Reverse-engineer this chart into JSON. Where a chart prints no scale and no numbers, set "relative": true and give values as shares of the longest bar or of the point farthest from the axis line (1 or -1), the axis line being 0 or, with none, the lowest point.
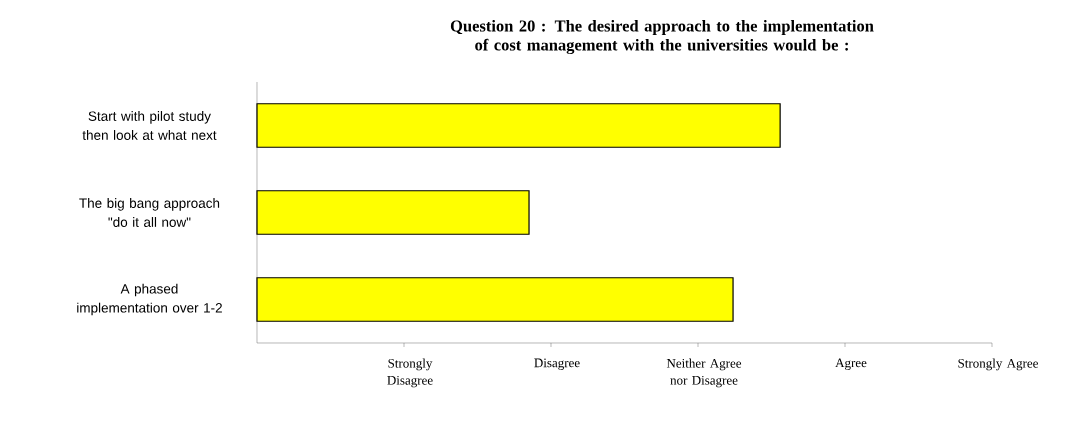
{
  "chart_data": {
    "type": "bar",
    "orientation": "horizontal",
    "relative": true,
    "title": "Question 20 : The desired approach to the implementation of cost management with the universities would be :",
    "categories": [
      "Start with pilot study then look at what next",
      "The big bang approach \"do it all now\"",
      "A phased implementation over 1-2"
    ],
    "values": [
      1,
      0.52,
      0.91
    ],
    "color": "#ffff00",
    "annotations": [
      "Strongly Disagree",
      "Disagree",
      "Neither Agree nor Disagree",
      "Agree",
      "Strongly Agree"
    ]
  }
}
